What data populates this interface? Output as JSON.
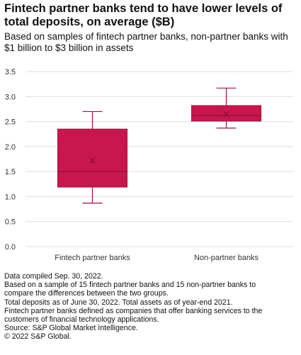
{
  "chart_data": {
    "type": "box",
    "title": "Fintech partner banks tend to have lower levels of total deposits, on average ($B)",
    "subtitle": "Based on samples of fintech partner banks, non-partner banks with $1 billion to $3 billion in assets",
    "xlabel": "",
    "ylabel": "",
    "ylim": [
      0,
      3.5
    ],
    "yticks": [
      "0.0",
      "0.5",
      "1.0",
      "1.5",
      "2.0",
      "2.5",
      "3.0",
      "3.5"
    ],
    "yticks_values": [
      0,
      0.5,
      1.0,
      1.5,
      2.0,
      2.5,
      3.0,
      3.5
    ],
    "grid": true,
    "categories": [
      "Fintech partner banks",
      "Non-partner banks"
    ],
    "boxes": [
      {
        "category": "Fintech partner banks",
        "min": 0.87,
        "q1": 1.19,
        "median": 1.5,
        "q3": 2.35,
        "max": 2.7,
        "mean": 1.72
      },
      {
        "category": "Non-partner banks",
        "min": 2.37,
        "q1": 2.51,
        "median": 2.62,
        "q3": 2.82,
        "max": 3.17,
        "mean": 2.65
      }
    ],
    "colors": {
      "box": "#C8174E",
      "box_edge": "#A3103E",
      "grid": "#DDDDDD"
    }
  },
  "notes": [
    "Data compiled Sep. 30, 2022.",
    "Based on a sample of 15 fintech partner banks and 15 non-partner banks to",
    "compare the differences between the two groups.",
    "Total deposits as of June 30, 2022. Total assets as of year-end 2021.",
    "Fintech partner banks defined as companies that offer banking services to the",
    "customers of financial technology applications.",
    "Source: S&P Global Market Intelligence.",
    "© 2022 S&P Global."
  ]
}
